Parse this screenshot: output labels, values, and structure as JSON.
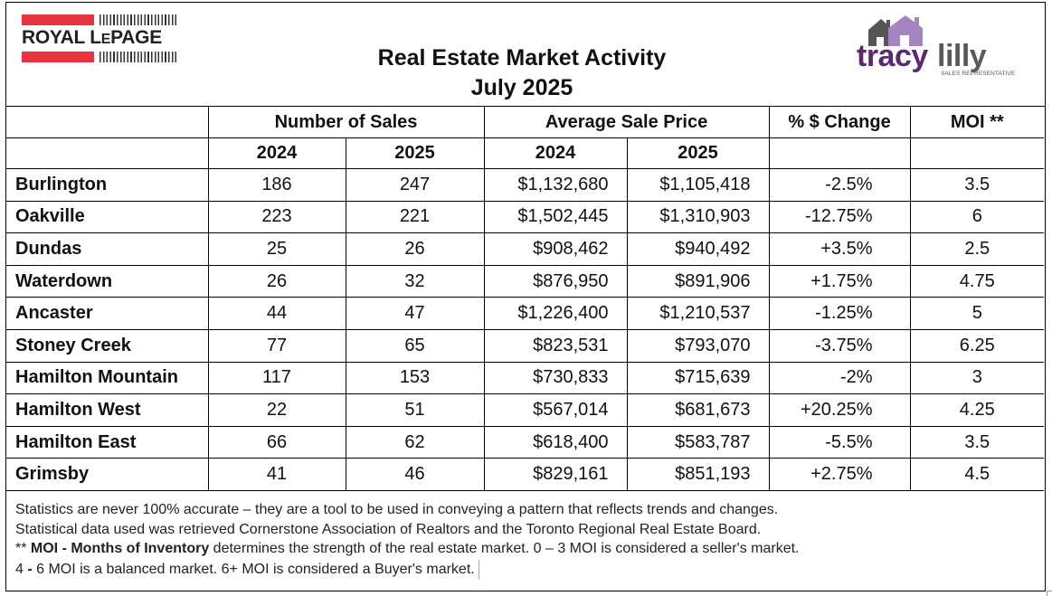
{
  "header": {
    "logo_left": {
      "text_main": "ROYAL L",
      "text_small": "E",
      "text_end": "PAGE",
      "brand_color": "#e8343e"
    },
    "title": "Real Estate Market Activity",
    "subtitle": "July 2025",
    "logo_right": {
      "text_part1": "tracy",
      "text_part2": "lilly",
      "tagline": "SALES REPRESENTATIVE",
      "color_primary": "#5b2a6e",
      "color_secondary": "#5a5a5a",
      "color_house": "#a585c0"
    }
  },
  "table": {
    "group_headers": [
      "Number of Sales",
      "Average Sale Price",
      "% $ Change",
      "MOI **"
    ],
    "year_headers": [
      "2024",
      "2025",
      "2024",
      "2025"
    ],
    "rows": [
      {
        "area": "Burlington",
        "sales_2024": "186",
        "sales_2025": "247",
        "price_2024": "$1,132,680",
        "price_2025": "$1,105,418",
        "change": "-2.5%",
        "moi": "3.5"
      },
      {
        "area": "Oakville",
        "sales_2024": "223",
        "sales_2025": "221",
        "price_2024": "$1,502,445",
        "price_2025": "$1,310,903",
        "change": "-12.75%",
        "moi": "6"
      },
      {
        "area": "Dundas",
        "sales_2024": "25",
        "sales_2025": "26",
        "price_2024": "$908,462",
        "price_2025": "$940,492",
        "change": "+3.5%",
        "moi": "2.5"
      },
      {
        "area": "Waterdown",
        "sales_2024": "26",
        "sales_2025": "32",
        "price_2024": "$876,950",
        "price_2025": "$891,906",
        "change": "+1.75%",
        "moi": "4.75"
      },
      {
        "area": "Ancaster",
        "sales_2024": "44",
        "sales_2025": "47",
        "price_2024": "$1,226,400",
        "price_2025": "$1,210,537",
        "change": "-1.25%",
        "moi": "5"
      },
      {
        "area": "Stoney Creek",
        "sales_2024": "77",
        "sales_2025": "65",
        "price_2024": "$823,531",
        "price_2025": "$793,070",
        "change": "-3.75%",
        "moi": "6.25"
      },
      {
        "area": "Hamilton Mountain",
        "sales_2024": "117",
        "sales_2025": "153",
        "price_2024": "$730,833",
        "price_2025": "$715,639",
        "change": "-2%",
        "moi": "3"
      },
      {
        "area": "Hamilton West",
        "sales_2024": "22",
        "sales_2025": "51",
        "price_2024": "$567,014",
        "price_2025": "$681,673",
        "change": "+20.25%",
        "moi": "4.25"
      },
      {
        "area": "Hamilton East",
        "sales_2024": "66",
        "sales_2025": "62",
        "price_2024": "$618,400",
        "price_2025": "$583,787",
        "change": "-5.5%",
        "moi": "3.5"
      },
      {
        "area": "Grimsby",
        "sales_2024": "41",
        "sales_2025": "46",
        "price_2024": "$829,161",
        "price_2025": "$851,193",
        "change": "+2.75%",
        "moi": "4.5"
      }
    ]
  },
  "notes": {
    "line1": "Statistics are never 100% accurate – they are a tool to be used in conveying a pattern that reflects trends and changes.",
    "line2": "Statistical data used was retrieved Cornerstone Association of Realtors and the Toronto Regional Real Estate Board.",
    "line3_prefix": "** ",
    "line3_bold": "MOI - Months of Inventory",
    "line3_rest": " determines the strength of the real estate market. 0 – 3 MOI is considered a seller's market.",
    "line4_a": "4 ",
    "line4_b": "-",
    "line4_c": " 6 MOI is a balanced market.  6+ MOI is considered a Buyer's market."
  }
}
